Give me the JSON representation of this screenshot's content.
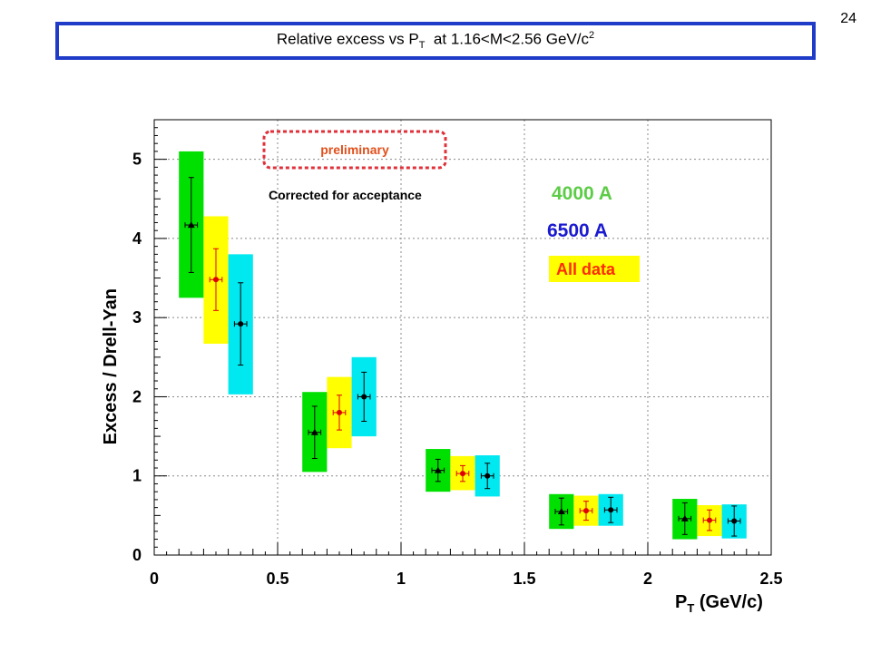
{
  "slide_number": "24",
  "title": {
    "prefix": "Relative excess vs P",
    "sub": "T",
    "middle": "  at 1.16<M<2.56 GeV/c",
    "sup": "2"
  },
  "chart_data": {
    "type": "scatter",
    "xlabel": "P_T (GeV/c)",
    "ylabel": "Excess / Drell-Yan",
    "xlim": [
      0,
      2.5
    ],
    "ylim": [
      0,
      5.5
    ],
    "grid": true,
    "x_ticks": [
      "0",
      "0.5",
      "1",
      "1.5",
      "2",
      "2.5"
    ],
    "y_ticks": [
      "0",
      "1",
      "2",
      "3",
      "4",
      "5"
    ],
    "annotations": {
      "preliminary": "preliminary",
      "acceptance_note": "Corrected for acceptance"
    },
    "legend": {
      "placement": "top-right",
      "entries": [
        "4000 A",
        "6500 A",
        "All data"
      ]
    },
    "series": [
      {
        "name": "4000 A",
        "marker": "triangle",
        "marker_color": "#000000",
        "box_color": "#00e000",
        "text_color": "#5ccc46",
        "points": [
          {
            "x": 0.15,
            "y": 4.17,
            "stat_err": 0.6,
            "sys_low": 3.25,
            "sys_high": 5.1
          },
          {
            "x": 0.65,
            "y": 1.55,
            "stat_err": 0.33,
            "sys_low": 1.05,
            "sys_high": 2.06
          },
          {
            "x": 1.15,
            "y": 1.07,
            "stat_err": 0.14,
            "sys_low": 0.8,
            "sys_high": 1.34
          },
          {
            "x": 1.65,
            "y": 0.55,
            "stat_err": 0.17,
            "sys_low": 0.33,
            "sys_high": 0.77
          },
          {
            "x": 2.15,
            "y": 0.46,
            "stat_err": 0.2,
            "sys_low": 0.2,
            "sys_high": 0.71
          }
        ]
      },
      {
        "name": "All data",
        "marker": "circle",
        "marker_color": "#e00000",
        "box_color": "#ffff00",
        "text_color": "#ff2a00",
        "points": [
          {
            "x": 0.25,
            "y": 3.48,
            "stat_err": 0.39,
            "sys_low": 2.67,
            "sys_high": 4.28
          },
          {
            "x": 0.75,
            "y": 1.8,
            "stat_err": 0.22,
            "sys_low": 1.35,
            "sys_high": 2.25
          },
          {
            "x": 1.25,
            "y": 1.03,
            "stat_err": 0.1,
            "sys_low": 0.82,
            "sys_high": 1.25
          },
          {
            "x": 1.75,
            "y": 0.56,
            "stat_err": 0.12,
            "sys_low": 0.37,
            "sys_high": 0.75
          },
          {
            "x": 2.25,
            "y": 0.44,
            "stat_err": 0.13,
            "sys_low": 0.24,
            "sys_high": 0.63
          }
        ]
      },
      {
        "name": "6500 A",
        "marker": "circle",
        "marker_color": "#000000",
        "box_color": "#00e8f0",
        "text_color": "#1a1ad0",
        "points": [
          {
            "x": 0.35,
            "y": 2.92,
            "stat_err": 0.52,
            "sys_low": 2.03,
            "sys_high": 3.8
          },
          {
            "x": 0.85,
            "y": 2.0,
            "stat_err": 0.31,
            "sys_low": 1.5,
            "sys_high": 2.5
          },
          {
            "x": 1.35,
            "y": 1.0,
            "stat_err": 0.16,
            "sys_low": 0.74,
            "sys_high": 1.26
          },
          {
            "x": 1.85,
            "y": 0.57,
            "stat_err": 0.16,
            "sys_low": 0.37,
            "sys_high": 0.77
          },
          {
            "x": 2.35,
            "y": 0.43,
            "stat_err": 0.19,
            "sys_low": 0.21,
            "sys_high": 0.64
          }
        ]
      }
    ]
  }
}
